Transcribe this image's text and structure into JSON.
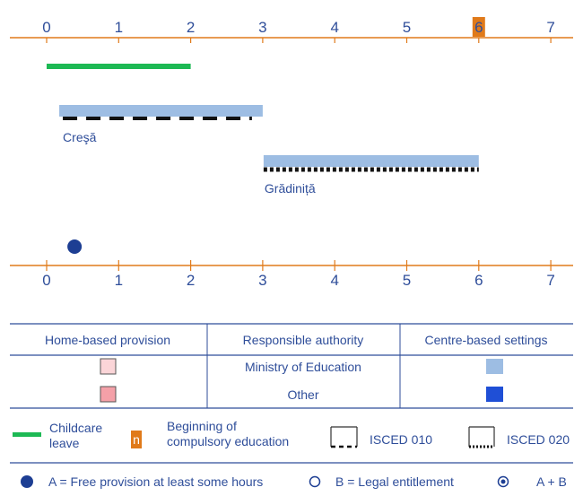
{
  "axis": {
    "ticks": [
      "0",
      "1",
      "2",
      "3",
      "4",
      "5",
      "6",
      "7"
    ],
    "highlight_tick": "6",
    "colors": {
      "line": "#e07a1a",
      "text": "#2f4e9a",
      "highlight": "#e07a1a"
    }
  },
  "timeline": {
    "childcare_leave": {
      "from": 0,
      "to": 2,
      "color": "#1db954"
    },
    "bars": [
      {
        "label": "Creşă",
        "from": 0.2,
        "to": 3,
        "type": "ISCED 010",
        "color": "#9dbde3"
      },
      {
        "label": "Grădiniță",
        "from": 3,
        "to": 6,
        "type": "ISCED 020",
        "color": "#9dbde3"
      }
    ],
    "free_provision_markers": [
      {
        "age": 0.4,
        "kind": "A"
      }
    ]
  },
  "authority_table": {
    "headers": [
      "Home-based provision",
      "Responsible authority",
      "Centre-based settings"
    ],
    "rows": [
      {
        "authority": "Ministry of Education",
        "home_color": "#fbd5d8",
        "centre_color": "#9dbde3"
      },
      {
        "authority": "Other",
        "home_color": "#f4a0a8",
        "centre_color": "#1f4fd6"
      }
    ]
  },
  "legend": {
    "childcare": [
      "Childcare",
      "leave"
    ],
    "compulsory_marker": "n",
    "compulsory": [
      "Beginning of",
      "compulsory education"
    ],
    "isced010": "ISCED 010",
    "isced020": "ISCED 020",
    "free_a": "A = Free provision at least some hours",
    "legal_b": "B = Legal entitlement",
    "a_plus_b": "A + B"
  }
}
